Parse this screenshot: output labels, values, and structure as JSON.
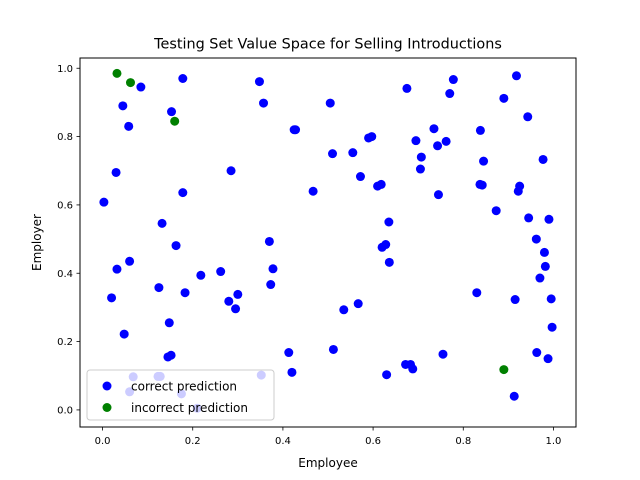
{
  "chart_data": {
    "type": "scatter",
    "title": "Testing Set Value Space for Selling Introductions",
    "xlabel": "Employee",
    "ylabel": "Employer",
    "xlim": [
      -0.05,
      1.05
    ],
    "ylim": [
      -0.05,
      1.03
    ],
    "xticks": [
      "0.0",
      "0.2",
      "0.4",
      "0.6",
      "0.8",
      "1.0"
    ],
    "xtick_values": [
      0,
      0.2,
      0.4,
      0.6,
      0.8,
      1.0
    ],
    "yticks": [
      "0.0",
      "0.2",
      "0.4",
      "0.6",
      "0.8",
      "1.0"
    ],
    "ytick_values": [
      0,
      0.2,
      0.4,
      0.6,
      0.8,
      1.0
    ],
    "grid": false,
    "legend_position": "lower-left",
    "series": [
      {
        "name": "correct prediction",
        "color": "#0000ff",
        "points": [
          [
            0.003,
            0.608
          ],
          [
            0.02,
            0.328
          ],
          [
            0.03,
            0.695
          ],
          [
            0.032,
            0.412
          ],
          [
            0.045,
            0.89
          ],
          [
            0.048,
            0.222
          ],
          [
            0.058,
            0.83
          ],
          [
            0.06,
            0.435
          ],
          [
            0.06,
            0.053
          ],
          [
            0.068,
            0.097
          ],
          [
            0.085,
            0.945
          ],
          [
            0.123,
            0.098
          ],
          [
            0.128,
            0.098
          ],
          [
            0.125,
            0.358
          ],
          [
            0.132,
            0.546
          ],
          [
            0.145,
            0.155
          ],
          [
            0.148,
            0.255
          ],
          [
            0.152,
            0.16
          ],
          [
            0.153,
            0.873
          ],
          [
            0.163,
            0.481
          ],
          [
            0.175,
            0.047
          ],
          [
            0.178,
            0.97
          ],
          [
            0.178,
            0.636
          ],
          [
            0.183,
            0.343
          ],
          [
            0.21,
            0.005
          ],
          [
            0.218,
            0.394
          ],
          [
            0.262,
            0.405
          ],
          [
            0.28,
            0.318
          ],
          [
            0.285,
            0.7
          ],
          [
            0.295,
            0.296
          ],
          [
            0.3,
            0.338
          ],
          [
            0.348,
            0.961
          ],
          [
            0.352,
            0.102
          ],
          [
            0.357,
            0.898
          ],
          [
            0.37,
            0.493
          ],
          [
            0.373,
            0.367
          ],
          [
            0.378,
            0.413
          ],
          [
            0.413,
            0.168
          ],
          [
            0.42,
            0.11
          ],
          [
            0.425,
            0.82
          ],
          [
            0.428,
            0.82
          ],
          [
            0.467,
            0.64
          ],
          [
            0.505,
            0.898
          ],
          [
            0.51,
            0.75
          ],
          [
            0.512,
            0.177
          ],
          [
            0.535,
            0.293
          ],
          [
            0.555,
            0.753
          ],
          [
            0.567,
            0.311
          ],
          [
            0.572,
            0.683
          ],
          [
            0.59,
            0.796
          ],
          [
            0.597,
            0.8
          ],
          [
            0.61,
            0.655
          ],
          [
            0.618,
            0.66
          ],
          [
            0.62,
            0.476
          ],
          [
            0.628,
            0.484
          ],
          [
            0.63,
            0.103
          ],
          [
            0.635,
            0.55
          ],
          [
            0.636,
            0.432
          ],
          [
            0.672,
            0.133
          ],
          [
            0.675,
            0.941
          ],
          [
            0.683,
            0.133
          ],
          [
            0.688,
            0.12
          ],
          [
            0.695,
            0.788
          ],
          [
            0.705,
            0.705
          ],
          [
            0.707,
            0.74
          ],
          [
            0.735,
            0.823
          ],
          [
            0.743,
            0.773
          ],
          [
            0.745,
            0.63
          ],
          [
            0.755,
            0.163
          ],
          [
            0.762,
            0.786
          ],
          [
            0.77,
            0.926
          ],
          [
            0.778,
            0.967
          ],
          [
            0.83,
            0.343
          ],
          [
            0.837,
            0.66
          ],
          [
            0.838,
            0.818
          ],
          [
            0.842,
            0.658
          ],
          [
            0.845,
            0.728
          ],
          [
            0.873,
            0.583
          ],
          [
            0.89,
            0.912
          ],
          [
            0.913,
            0.04
          ],
          [
            0.915,
            0.323
          ],
          [
            0.918,
            0.978
          ],
          [
            0.922,
            0.64
          ],
          [
            0.925,
            0.655
          ],
          [
            0.943,
            0.858
          ],
          [
            0.945,
            0.562
          ],
          [
            0.962,
            0.5
          ],
          [
            0.963,
            0.168
          ],
          [
            0.97,
            0.386
          ],
          [
            0.977,
            0.733
          ],
          [
            0.98,
            0.461
          ],
          [
            0.982,
            0.42
          ],
          [
            0.988,
            0.15
          ],
          [
            0.99,
            0.558
          ],
          [
            0.995,
            0.325
          ],
          [
            0.997,
            0.242
          ]
        ]
      },
      {
        "name": "incorrect prediction",
        "color": "#008000",
        "points": [
          [
            0.032,
            0.985
          ],
          [
            0.062,
            0.958
          ],
          [
            0.16,
            0.845
          ],
          [
            0.89,
            0.118
          ]
        ]
      }
    ]
  }
}
